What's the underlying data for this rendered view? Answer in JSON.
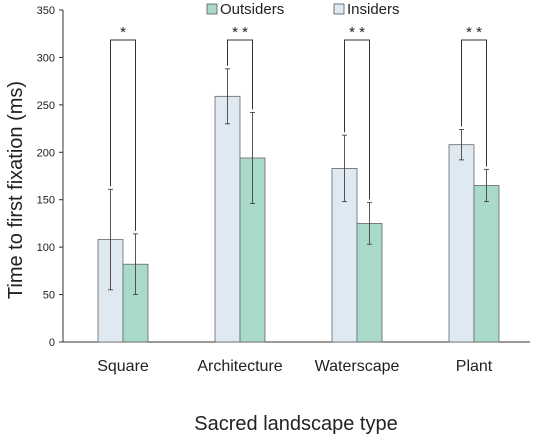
{
  "chart_data": {
    "type": "bar",
    "title": "",
    "xlabel": "Sacred landscape type",
    "ylabel": "Time to first fixation (ms)",
    "ylim": [
      0,
      350
    ],
    "yticks": [
      0,
      50,
      100,
      150,
      200,
      250,
      300,
      350
    ],
    "grid": false,
    "legend_position": "top-right",
    "categories": [
      "Square",
      "Architecture",
      "Waterscape",
      "Plant"
    ],
    "series": [
      {
        "name": "Insiders",
        "color": "#dfe9f1",
        "values": [
          108,
          259,
          183,
          208
        ],
        "errors": [
          53,
          29,
          35,
          16
        ]
      },
      {
        "name": "Outsiders",
        "color": "#a9d9c8",
        "values": [
          82,
          194,
          125,
          165
        ],
        "errors": [
          32,
          48,
          22,
          17
        ]
      }
    ],
    "legend_order": [
      "Outsiders",
      "Insiders"
    ],
    "significance": [
      "*",
      "* *",
      "* *",
      "* *"
    ]
  }
}
